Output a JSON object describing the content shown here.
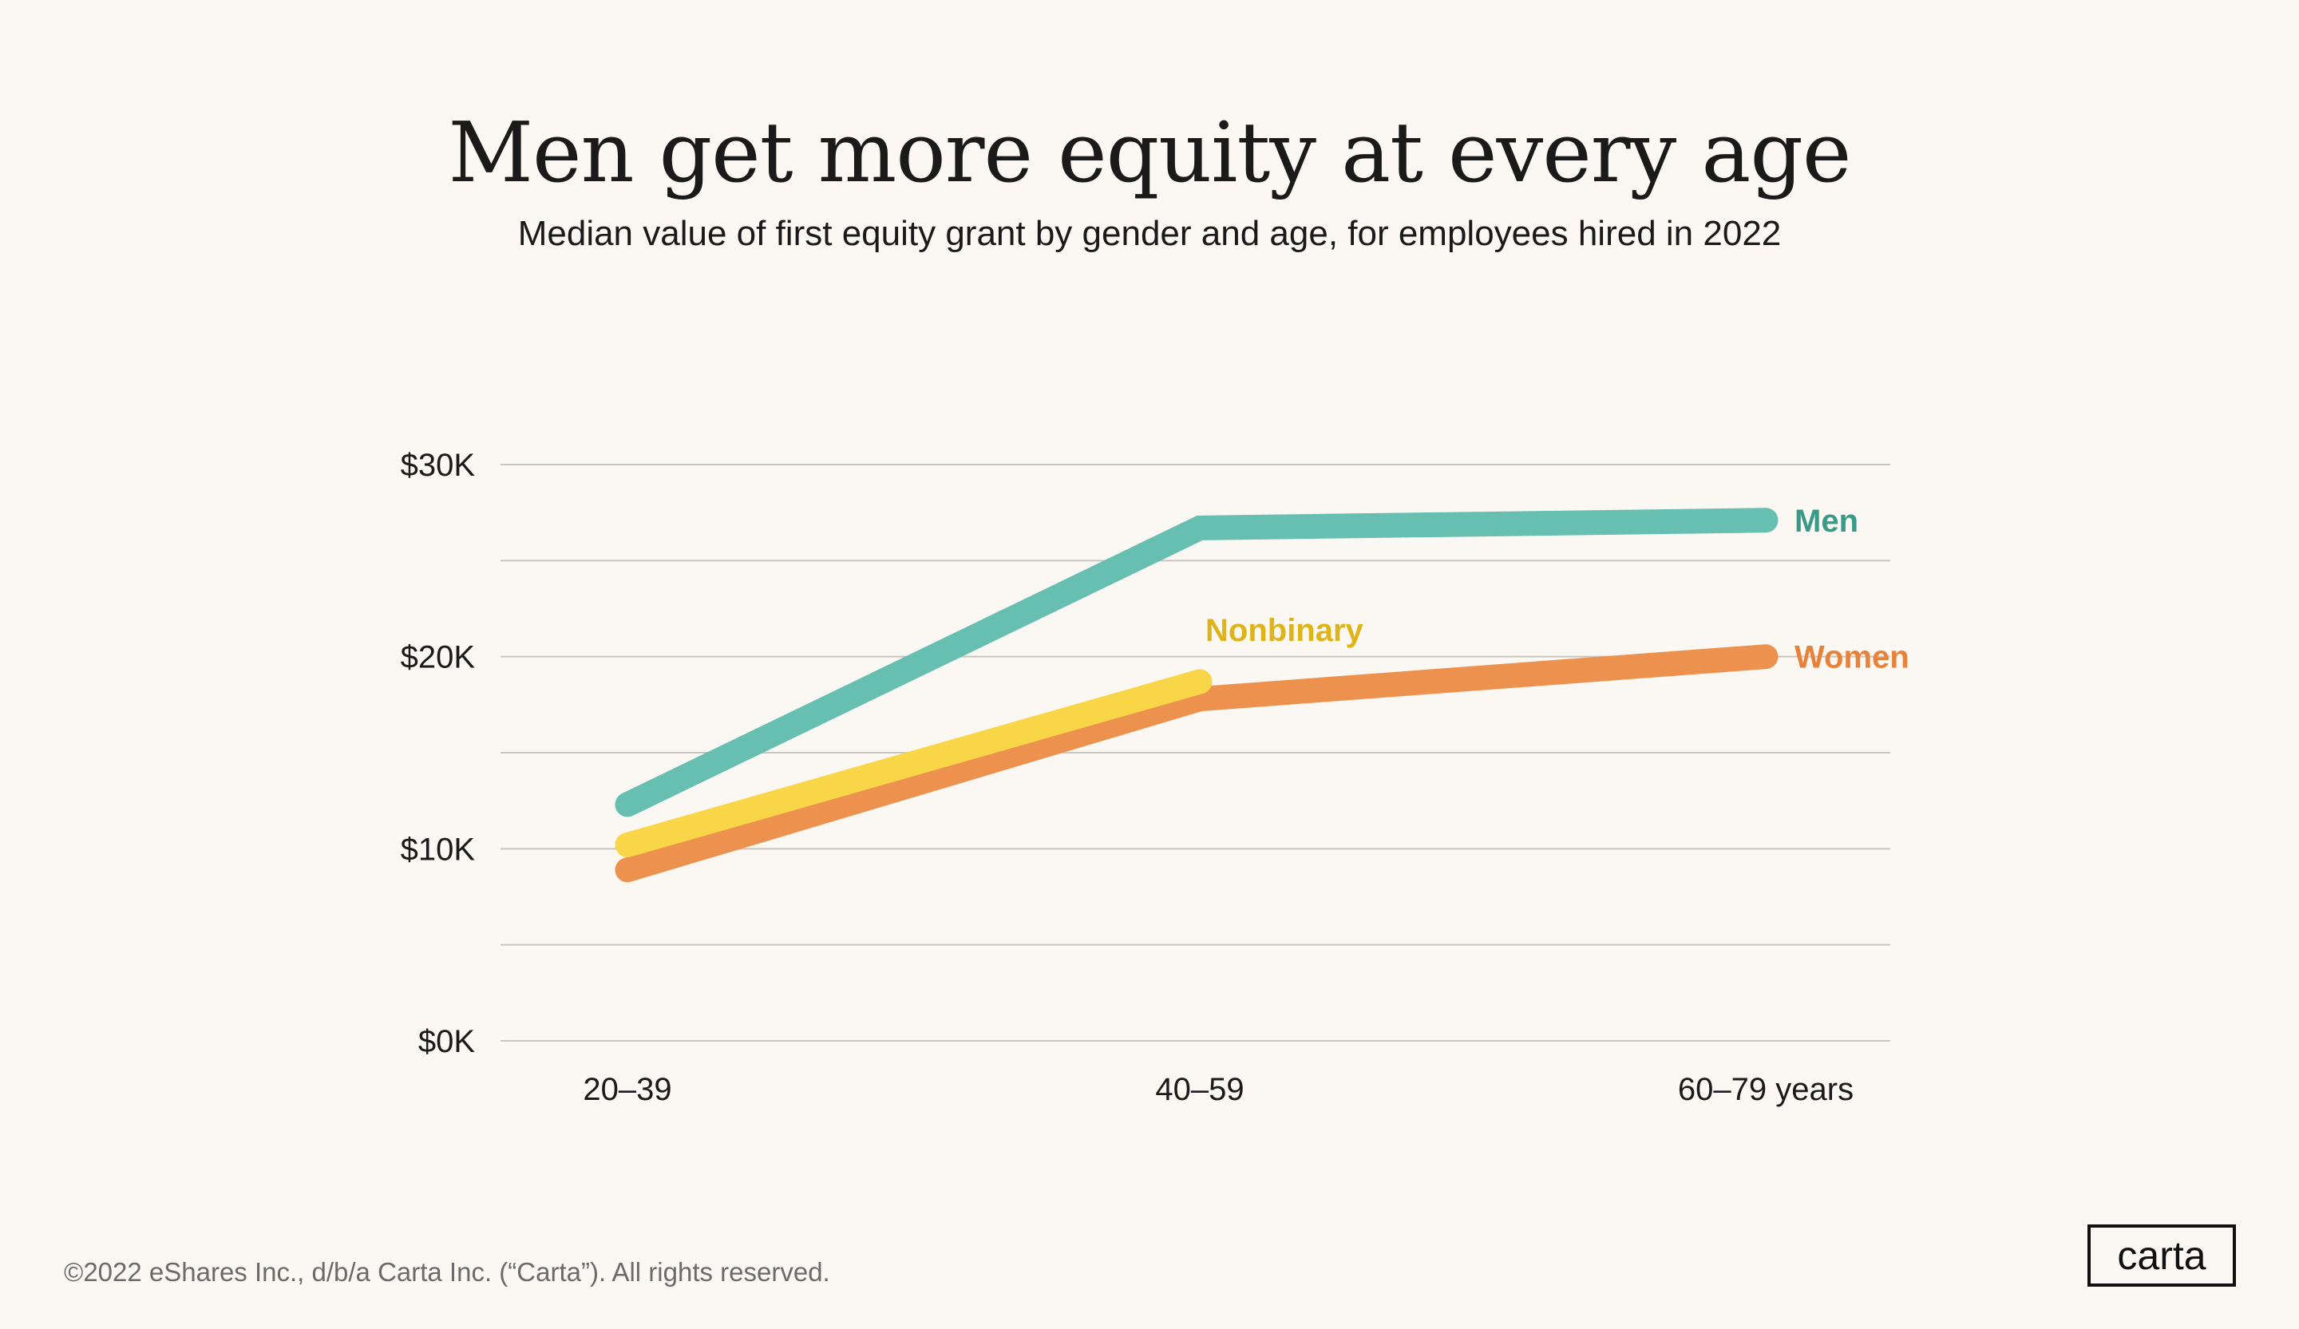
{
  "title": "Men get more equity at every age",
  "subtitle": "Median value of first equity grant by gender and age, for employees hired in 2022",
  "footer": "©2022 eShares Inc., d/b/a Carta Inc. (“Carta”). All rights reserved.",
  "logo": "carta",
  "chart_data": {
    "type": "line",
    "categories": [
      "20–39",
      "40–59",
      "60–79 years"
    ],
    "y_ticks": [
      "$0K",
      "$10K",
      "$20K",
      "$30K"
    ],
    "ylim": [
      0,
      30000
    ],
    "grid": true,
    "series": [
      {
        "name": "Men",
        "values": [
          12300,
          26700,
          27100
        ],
        "color": "#66bfb0",
        "label_color": "#3a9a88"
      },
      {
        "name": "Women",
        "values": [
          8900,
          17800,
          20000
        ],
        "color": "#ed914f",
        "label_color": "#e8823a"
      },
      {
        "name": "Nonbinary",
        "values": [
          10200,
          18700,
          null
        ],
        "color": "#f8d648",
        "label_color": "#dfb418"
      }
    ]
  }
}
